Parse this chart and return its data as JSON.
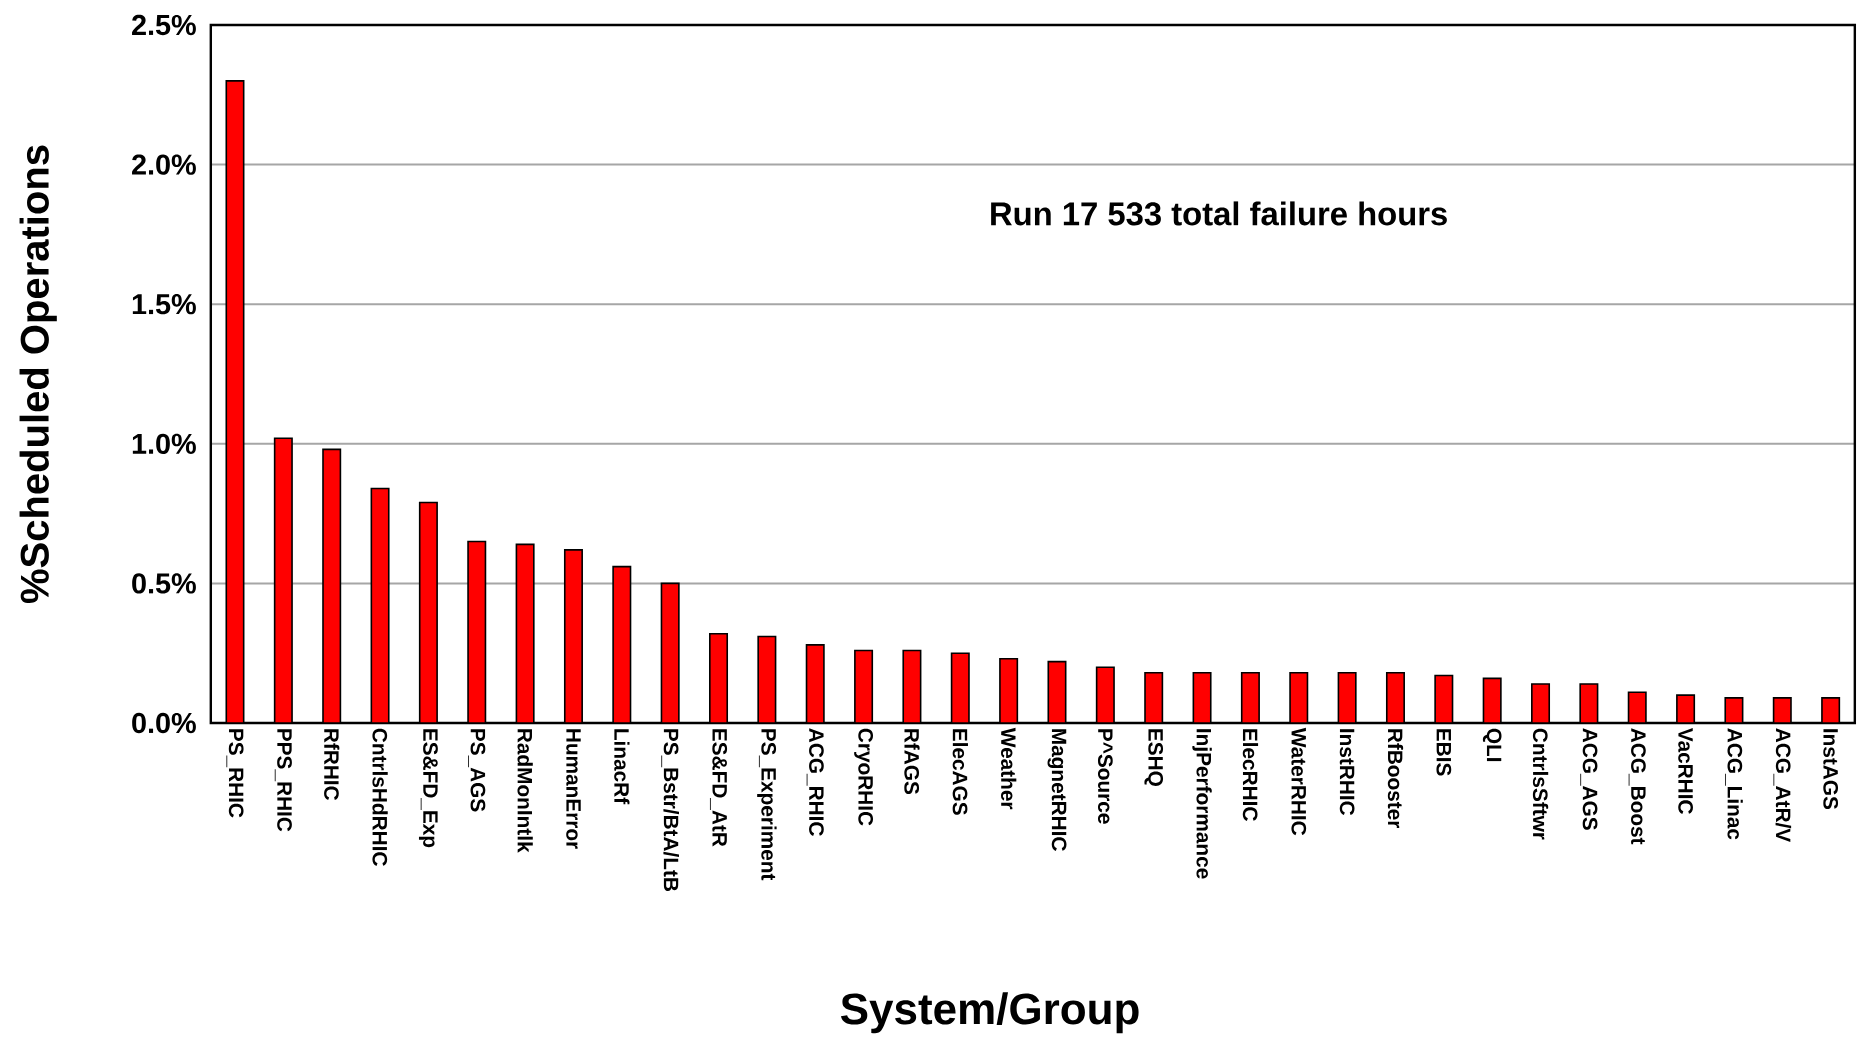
{
  "chart_data": {
    "type": "bar",
    "xlabel": "System/Group",
    "ylabel": "%Scheduled Operations",
    "annotations": [
      "Run 17   533 total failure hours"
    ],
    "categories": [
      "PS_RHIC",
      "PPS_RHIC",
      "RfRHIC",
      "CntrlsHdRHIC",
      "ES&FD_Exp",
      "PS_AGS",
      "RadMonIntlk",
      "HumanError",
      "LinacRf",
      "PS_Bstr/BtA/LtB",
      "ES&FD_AtR",
      "PS_Experiment",
      "ACG_RHIC",
      "CryoRHIC",
      "RfAGS",
      "ElecAGS",
      "Weather",
      "MagnetRHIC",
      "P^Source",
      "ESHQ",
      "InjPerformance",
      "ElecRHIC",
      "WaterRHIC",
      "InstRHIC",
      "RfBooster",
      "EBIS",
      "QLI",
      "CntrlsSftwr",
      "ACG_AGS",
      "ACG_Boost",
      "VacRHIC",
      "ACG_Linac",
      "ACG_AtR/V",
      "InstAGS"
    ],
    "values": [
      2.3,
      1.02,
      0.98,
      0.84,
      0.79,
      0.65,
      0.64,
      0.62,
      0.56,
      0.5,
      0.32,
      0.31,
      0.28,
      0.26,
      0.26,
      0.25,
      0.23,
      0.22,
      0.2,
      0.18,
      0.18,
      0.18,
      0.18,
      0.18,
      0.18,
      0.17,
      0.16,
      0.14,
      0.14,
      0.11,
      0.1,
      0.09,
      0.09,
      0.09
    ],
    "color": "#ff0000",
    "ylim": [
      0,
      2.5
    ],
    "yticks": [
      {
        "value": 0,
        "label": "0.0%"
      },
      {
        "value": 0.5,
        "label": "0.5%"
      },
      {
        "value": 1.0,
        "label": "1.0%"
      },
      {
        "value": 1.5,
        "label": "1.5%"
      },
      {
        "value": 2.0,
        "label": "2.0%"
      },
      {
        "value": 2.5,
        "label": "2.5%"
      }
    ],
    "grid": "y"
  }
}
